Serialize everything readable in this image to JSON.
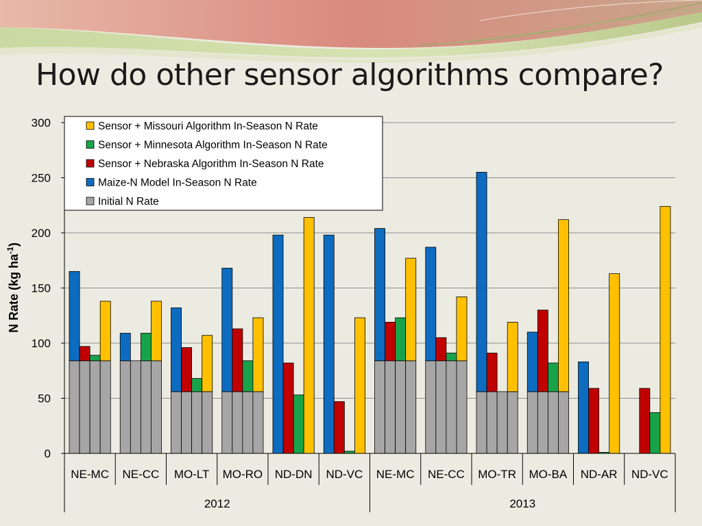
{
  "slide": {
    "title": "How do other sensor algorithms compare?"
  },
  "colors": {
    "initial": "#a6a6a6",
    "maize": "#0d6cc0",
    "nebraska": "#c00000",
    "minnesota": "#18a34a",
    "missouri": "#ffc000"
  },
  "chart_data": {
    "type": "bar",
    "subtype": "grouped-with-base",
    "ylabel": "N Rate (kg ha",
    "ylabel_sup": "-1",
    "ylabel_close": ")",
    "ylim": [
      0,
      300
    ],
    "yticks": [
      0,
      50,
      100,
      150,
      200,
      250,
      300
    ],
    "grid": true,
    "legend_position": "top-left",
    "categories": [
      "NE-MC",
      "NE-CC",
      "MO-LT",
      "MO-RO",
      "ND-DN",
      "ND-VC",
      "NE-MC",
      "NE-CC",
      "MO-TR",
      "MO-BA",
      "ND-AR",
      "ND-VC"
    ],
    "groups": [
      {
        "label": "2012",
        "count": 6
      },
      {
        "label": "2013",
        "count": 6
      }
    ],
    "initial_n_rate": [
      84,
      84,
      56,
      56,
      0,
      0,
      84,
      84,
      56,
      56,
      0,
      0
    ],
    "series": [
      {
        "name": "Maize-N Model In-Season N Rate",
        "key": "maize",
        "values": [
          165,
          109,
          132,
          168,
          198,
          198,
          204,
          187,
          255,
          110,
          83,
          null
        ]
      },
      {
        "name": "Sensor + Nebraska Algorithm In-Season N Rate",
        "key": "nebraska",
        "values": [
          97,
          84,
          96,
          113,
          82,
          47,
          119,
          105,
          91,
          130,
          59,
          59
        ]
      },
      {
        "name": "Sensor + Minnesota Algorithm In-Season N Rate",
        "key": "minnesota",
        "values": [
          89,
          109,
          68,
          84,
          53,
          2,
          123,
          91,
          56,
          82,
          1,
          37
        ]
      },
      {
        "name": "Sensor + Missouri Algorithm In-Season N Rate",
        "key": "missouri",
        "values": [
          138,
          138,
          107,
          123,
          214,
          123,
          177,
          142,
          119,
          212,
          163,
          224
        ]
      }
    ],
    "legend": [
      {
        "label": "Sensor + Missouri Algorithm In-Season N Rate",
        "key": "missouri"
      },
      {
        "label": "Sensor + Minnesota Algorithm In-Season N Rate",
        "key": "minnesota"
      },
      {
        "label": "Sensor + Nebraska Algorithm In-Season N Rate",
        "key": "nebraska"
      },
      {
        "label": "Maize-N Model In-Season N Rate",
        "key": "maize"
      },
      {
        "label": "Initial N Rate",
        "key": "initial"
      }
    ]
  }
}
